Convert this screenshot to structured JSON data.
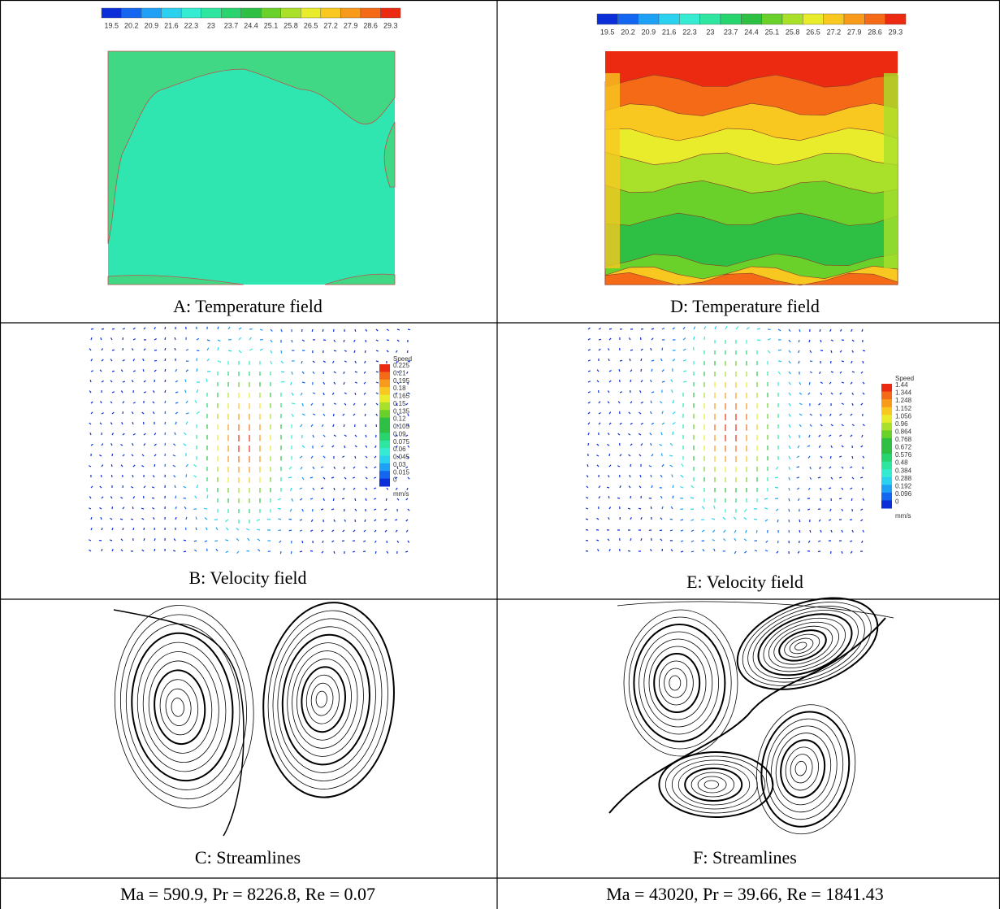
{
  "panels": [
    {
      "caption": "A: Temperature field",
      "colorbar": [
        "19.5",
        "20.2",
        "20.9",
        "21.6",
        "22.3",
        "23",
        "23.7",
        "24.4",
        "25.1",
        "25.8",
        "26.5",
        "27.2",
        "27.9",
        "28.6",
        "29.3"
      ]
    },
    {
      "caption": "D: Temperature field",
      "colorbar": [
        "19.5",
        "20.2",
        "20.9",
        "21.6",
        "22.3",
        "23",
        "23.7",
        "24.4",
        "25.1",
        "25.8",
        "26.5",
        "27.2",
        "27.9",
        "28.6",
        "29.3"
      ]
    },
    {
      "caption": "B: Velocity field",
      "legend_title": "Speed",
      "legend": [
        "0.225",
        "0.21",
        "0.195",
        "0.18",
        "0.165",
        "0.15",
        "0.135",
        "0.12",
        "0.105",
        "0.09",
        "0.075",
        "0.06",
        "0.045",
        "0.03",
        "0.015",
        "0"
      ],
      "unit": "mm/s"
    },
    {
      "caption": "E: Velocity field",
      "legend_title": "Speed",
      "legend": [
        "1.44",
        "1.344",
        "1.248",
        "1.152",
        "1.056",
        "0.96",
        "0.864",
        "0.768",
        "0.672",
        "0.576",
        "0.48",
        "0.384",
        "0.288",
        "0.192",
        "0.096",
        "0"
      ],
      "unit": "mm/s"
    },
    {
      "caption": "C: Streamlines"
    },
    {
      "caption": "F: Streamlines"
    }
  ],
  "footer": [
    "Ma = 590.9, Pr = 8226.8, Re = 0.07",
    "Ma = 43020, Pr = 39.66, Re = 1841.43"
  ]
}
